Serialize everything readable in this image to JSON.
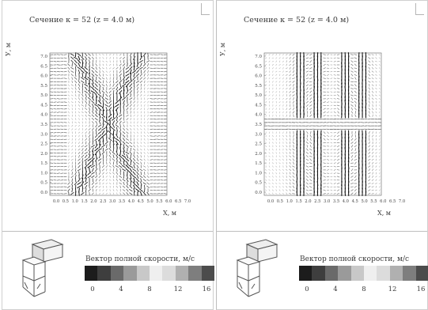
{
  "panels": [
    {
      "title": "Сечение к = 52 (z = 4.0 м)",
      "xlabel": "X, м",
      "ylabel": "У, м",
      "pattern": "x-shaped",
      "xticks": [
        "0.0",
        "0.5",
        "1.0",
        "1.5",
        "2.0",
        "2.5",
        "3.0",
        "3.5",
        "4.0",
        "4.5",
        "5.0",
        "5.5",
        "6.0",
        "6.5",
        "7.0"
      ],
      "yticks": [
        "0.0",
        "0.5",
        "1.0",
        "1.5",
        "2.0",
        "2.5",
        "3.0",
        "3.5",
        "4.0",
        "4.5",
        "5.0",
        "5.5",
        "6.0",
        "6.5",
        "7.0"
      ],
      "legend_title": "Вектор полной скорости, м/с",
      "legend_ticks": [
        "0",
        "4",
        "8",
        "12",
        "16"
      ]
    },
    {
      "title": "Сечение к = 52 (z = 4.0 м)",
      "xlabel": "X, м",
      "ylabel": "У, м",
      "pattern": "four-jets",
      "xticks": [
        "0.0",
        "0.5",
        "1.0",
        "1.5",
        "2.0",
        "2.5",
        "3.0",
        "3.5",
        "4.0",
        "4.5",
        "5.0",
        "5.5",
        "6.0",
        "6.5",
        "7.0"
      ],
      "yticks": [
        "0.0",
        "0.5",
        "1.0",
        "1.5",
        "2.0",
        "2.5",
        "3.0",
        "3.5",
        "4.0",
        "4.5",
        "5.0",
        "5.5",
        "6.0",
        "6.5",
        "7.0"
      ],
      "legend_title": "Вектор полной скорости, м/с",
      "legend_ticks": [
        "0",
        "4",
        "8",
        "12",
        "16"
      ]
    }
  ],
  "legend_colors": [
    "#1c1c1c",
    "#3e3e3e",
    "#6a6a6a",
    "#9a9a9a",
    "#c8c8c8",
    "#efefef",
    "#dcdcdc",
    "#b0b0b0",
    "#7e7e7e",
    "#4c4c4c"
  ],
  "icons": [
    "boiler-schematic-icon"
  ]
}
